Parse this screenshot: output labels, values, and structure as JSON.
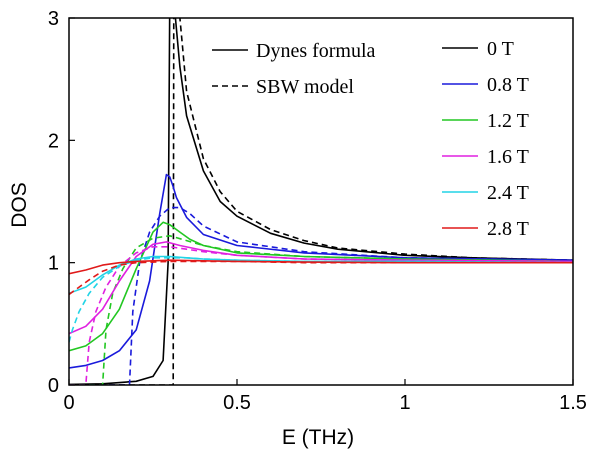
{
  "chart_data": {
    "type": "line",
    "xlabel": "E (THz)",
    "ylabel": "DOS",
    "xlim": [
      0,
      1.5
    ],
    "ylim": [
      0,
      3
    ],
    "xticks": [
      0,
      0.5,
      1,
      1.5
    ],
    "xtick_labels": [
      "0",
      "0.5",
      "1",
      "1.5"
    ],
    "yticks": [
      0,
      1,
      2,
      3
    ],
    "ytick_labels": [
      "0",
      "1",
      "2",
      "3"
    ],
    "grid": false,
    "style_legend": [
      {
        "label": "Dynes formula",
        "dash": "solid"
      },
      {
        "label": "SBW model",
        "dash": "dashed"
      }
    ],
    "series": [
      {
        "name": "0 T",
        "color": "#000000",
        "dynes": {
          "x": [
            0,
            0.1,
            0.2,
            0.25,
            0.28,
            0.295,
            0.3,
            0.31,
            0.33,
            0.35,
            0.4,
            0.45,
            0.5,
            0.6,
            0.7,
            0.8,
            1.0,
            1.2,
            1.5
          ],
          "y": [
            0.005,
            0.01,
            0.03,
            0.07,
            0.2,
            1.0,
            3.2,
            3.2,
            2.6,
            2.2,
            1.75,
            1.5,
            1.38,
            1.24,
            1.16,
            1.11,
            1.06,
            1.04,
            1.02
          ]
        },
        "sbw": {
          "x": [
            0,
            0.31,
            0.312,
            0.318,
            0.33,
            0.35,
            0.4,
            0.45,
            0.5,
            0.6,
            0.7,
            0.8,
            1.0,
            1.2,
            1.5
          ],
          "y": [
            0,
            0,
            3.2,
            3.2,
            3.0,
            2.4,
            1.85,
            1.58,
            1.42,
            1.27,
            1.18,
            1.12,
            1.07,
            1.04,
            1.02
          ]
        }
      },
      {
        "name": "0.8 T",
        "color": "#1a1adb",
        "dynes": {
          "x": [
            0,
            0.05,
            0.1,
            0.15,
            0.2,
            0.24,
            0.27,
            0.29,
            0.3,
            0.31,
            0.32,
            0.35,
            0.4,
            0.5,
            0.7,
            1.0,
            1.5
          ],
          "y": [
            0.14,
            0.16,
            0.2,
            0.28,
            0.45,
            0.85,
            1.4,
            1.72,
            1.7,
            1.62,
            1.53,
            1.37,
            1.23,
            1.14,
            1.08,
            1.04,
            1.02
          ]
        },
        "sbw": {
          "x": [
            0,
            0.18,
            0.19,
            0.21,
            0.24,
            0.27,
            0.3,
            0.33,
            0.36,
            0.4,
            0.5,
            0.7,
            1.0,
            1.5
          ],
          "y": [
            0,
            0,
            0.6,
            1.0,
            1.25,
            1.38,
            1.45,
            1.45,
            1.4,
            1.3,
            1.17,
            1.09,
            1.04,
            1.02
          ]
        }
      },
      {
        "name": "1.2 T",
        "color": "#22c722",
        "dynes": {
          "x": [
            0,
            0.05,
            0.1,
            0.15,
            0.2,
            0.25,
            0.28,
            0.3,
            0.33,
            0.36,
            0.4,
            0.5,
            0.7,
            1.0,
            1.5
          ],
          "y": [
            0.28,
            0.32,
            0.42,
            0.62,
            0.95,
            1.25,
            1.33,
            1.31,
            1.25,
            1.19,
            1.14,
            1.08,
            1.05,
            1.03,
            1.01
          ]
        },
        "sbw": {
          "x": [
            0,
            0.1,
            0.11,
            0.13,
            0.16,
            0.2,
            0.25,
            0.3,
            0.35,
            0.4,
            0.5,
            0.7,
            1.0,
            1.5
          ],
          "y": [
            0,
            0,
            0.45,
            0.75,
            0.95,
            1.12,
            1.2,
            1.22,
            1.18,
            1.14,
            1.09,
            1.05,
            1.03,
            1.01
          ]
        }
      },
      {
        "name": "1.6 T",
        "color": "#e020e0",
        "dynes": {
          "x": [
            0,
            0.05,
            0.1,
            0.15,
            0.2,
            0.25,
            0.29,
            0.33,
            0.4,
            0.5,
            0.7,
            1.0,
            1.5
          ],
          "y": [
            0.42,
            0.48,
            0.62,
            0.85,
            1.05,
            1.15,
            1.17,
            1.14,
            1.1,
            1.06,
            1.03,
            1.02,
            1.01
          ]
        },
        "sbw": {
          "x": [
            0,
            0.05,
            0.06,
            0.08,
            0.11,
            0.15,
            0.2,
            0.25,
            0.3,
            0.35,
            0.4,
            0.5,
            0.7,
            1.0,
            1.5
          ],
          "y": [
            0,
            0,
            0.35,
            0.6,
            0.8,
            0.97,
            1.08,
            1.13,
            1.13,
            1.11,
            1.09,
            1.06,
            1.03,
            1.02,
            1.01
          ]
        }
      },
      {
        "name": "2.4 T",
        "color": "#22d4e6",
        "dynes": {
          "x": [
            0,
            0.05,
            0.1,
            0.15,
            0.2,
            0.25,
            0.3,
            0.35,
            0.4,
            0.5,
            0.7,
            1.0,
            1.5
          ],
          "y": [
            0.75,
            0.8,
            0.9,
            0.98,
            1.03,
            1.05,
            1.05,
            1.04,
            1.03,
            1.02,
            1.01,
            1.01,
            1.0
          ]
        },
        "sbw": {
          "x": [
            0,
            0.01,
            0.03,
            0.06,
            0.1,
            0.15,
            0.2,
            0.25,
            0.3,
            0.35,
            0.4,
            0.5,
            0.7,
            1.0,
            1.5
          ],
          "y": [
            0.35,
            0.45,
            0.6,
            0.75,
            0.88,
            0.97,
            1.02,
            1.04,
            1.04,
            1.04,
            1.03,
            1.02,
            1.01,
            1.01,
            1.0
          ]
        }
      },
      {
        "name": "2.8 T",
        "color": "#e01a1a",
        "dynes": {
          "x": [
            0,
            0.05,
            0.1,
            0.15,
            0.2,
            0.3,
            0.4,
            0.5,
            0.7,
            1.0,
            1.5
          ],
          "y": [
            0.91,
            0.94,
            0.98,
            1.0,
            1.01,
            1.02,
            1.015,
            1.01,
            1.005,
            1.0,
            1.0
          ]
        },
        "sbw": {
          "x": [
            0,
            0.03,
            0.06,
            0.1,
            0.15,
            0.2,
            0.3,
            0.4,
            0.5,
            0.7,
            1.0,
            1.5
          ],
          "y": [
            0.74,
            0.8,
            0.86,
            0.93,
            0.98,
            1.0,
            1.01,
            1.01,
            1.01,
            1.0,
            1.0,
            1.0
          ]
        }
      }
    ]
  }
}
